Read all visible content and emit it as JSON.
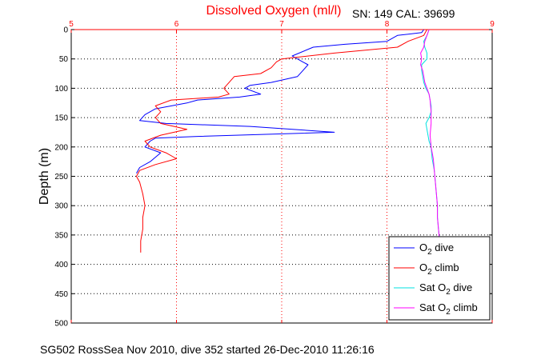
{
  "colors": {
    "o2_dive": "#0000ff",
    "o2_climb": "#ff0000",
    "sat_dive": "#00e0e0",
    "sat_climb": "#ff00ff",
    "x_axis": "#ff0000",
    "grid": "#ff0000"
  },
  "chart_data": {
    "type": "line",
    "title": "Dissolved Oxygen (ml/l)",
    "calibration_text": "SN: 149  CAL: 39699",
    "ylabel": "Depth (m)",
    "footer": "SG502 RossSea Nov 2010, dive 352 started 26-Dec-2010 11:26:16",
    "xlim": [
      5,
      9
    ],
    "ylim": [
      0,
      500
    ],
    "y_reversed": true,
    "x_axis_position": "top",
    "x_ticks": [
      "5",
      "6",
      "7",
      "8",
      "9"
    ],
    "y_ticks": [
      "0",
      "50",
      "100",
      "150",
      "200",
      "250",
      "300",
      "350",
      "400",
      "450",
      "500"
    ],
    "grid": true,
    "legend_placement": "bottom-right",
    "series": [
      {
        "key": "o2_dive",
        "legend_main": "O",
        "legend_sub": "2",
        "legend_rest": " dive",
        "points": [
          [
            8.35,
            0
          ],
          [
            8.33,
            5
          ],
          [
            8.1,
            10
          ],
          [
            8.0,
            20
          ],
          [
            7.6,
            25
          ],
          [
            7.3,
            30
          ],
          [
            7.1,
            45
          ],
          [
            7.2,
            55
          ],
          [
            7.25,
            60
          ],
          [
            7.2,
            70
          ],
          [
            7.15,
            80
          ],
          [
            6.9,
            90
          ],
          [
            6.7,
            95
          ],
          [
            6.65,
            100
          ],
          [
            6.8,
            110
          ],
          [
            6.6,
            115
          ],
          [
            6.2,
            120
          ],
          [
            6.1,
            125
          ],
          [
            5.8,
            135
          ],
          [
            5.7,
            145
          ],
          [
            5.65,
            155
          ],
          [
            5.9,
            160
          ],
          [
            6.7,
            165
          ],
          [
            7.5,
            175
          ],
          [
            6.2,
            182
          ],
          [
            5.8,
            185
          ],
          [
            5.75,
            190
          ],
          [
            5.7,
            200
          ],
          [
            5.85,
            210
          ],
          [
            5.75,
            225
          ],
          [
            5.65,
            235
          ],
          [
            5.62,
            245
          ]
        ]
      },
      {
        "key": "o2_climb",
        "legend_main": "O",
        "legend_sub": "2",
        "legend_rest": " climb",
        "points": [
          [
            8.38,
            0
          ],
          [
            8.35,
            10
          ],
          [
            8.2,
            20
          ],
          [
            8.1,
            30
          ],
          [
            7.5,
            40
          ],
          [
            7.0,
            50
          ],
          [
            6.95,
            55
          ],
          [
            6.9,
            65
          ],
          [
            6.8,
            75
          ],
          [
            6.55,
            80
          ],
          [
            6.5,
            90
          ],
          [
            6.45,
            100
          ],
          [
            6.5,
            110
          ],
          [
            6.4,
            115
          ],
          [
            5.95,
            120
          ],
          [
            5.8,
            130
          ],
          [
            5.85,
            140
          ],
          [
            5.8,
            150
          ],
          [
            5.85,
            160
          ],
          [
            6.1,
            170
          ],
          [
            5.85,
            180
          ],
          [
            5.7,
            190
          ],
          [
            5.75,
            200
          ],
          [
            5.9,
            210
          ],
          [
            6.0,
            220
          ],
          [
            5.8,
            230
          ],
          [
            5.65,
            240
          ],
          [
            5.62,
            250
          ],
          [
            5.65,
            260
          ],
          [
            5.68,
            280
          ],
          [
            5.7,
            300
          ],
          [
            5.68,
            320
          ],
          [
            5.68,
            340
          ],
          [
            5.66,
            360
          ],
          [
            5.66,
            380
          ]
        ]
      },
      {
        "key": "sat_dive",
        "legend_main": "Sat O",
        "legend_sub": "2",
        "legend_rest": " dive",
        "points": [
          [
            8.4,
            0
          ],
          [
            8.38,
            10
          ],
          [
            8.35,
            20
          ],
          [
            8.36,
            30
          ],
          [
            8.38,
            40
          ],
          [
            8.38,
            50
          ],
          [
            8.33,
            60
          ],
          [
            8.33,
            70
          ],
          [
            8.34,
            80
          ],
          [
            8.35,
            90
          ],
          [
            8.37,
            100
          ],
          [
            8.4,
            110
          ],
          [
            8.41,
            120
          ],
          [
            8.42,
            130
          ],
          [
            8.42,
            140
          ],
          [
            8.4,
            150
          ],
          [
            8.37,
            160
          ],
          [
            8.38,
            170
          ],
          [
            8.39,
            180
          ],
          [
            8.4,
            190
          ],
          [
            8.42,
            200
          ],
          [
            8.43,
            220
          ],
          [
            8.45,
            240
          ],
          [
            8.46,
            260
          ],
          [
            8.47,
            280
          ],
          [
            8.48,
            300
          ],
          [
            8.48,
            320
          ],
          [
            8.49,
            340
          ],
          [
            8.5,
            360
          ],
          [
            8.5,
            380
          ]
        ]
      },
      {
        "key": "sat_climb",
        "legend_main": "Sat O",
        "legend_sub": "2",
        "legend_rest": " climb",
        "points": [
          [
            8.4,
            0
          ],
          [
            8.38,
            10
          ],
          [
            8.36,
            20
          ],
          [
            8.35,
            30
          ],
          [
            8.32,
            40
          ],
          [
            8.33,
            50
          ],
          [
            8.32,
            60
          ],
          [
            8.34,
            70
          ],
          [
            8.35,
            80
          ],
          [
            8.36,
            90
          ],
          [
            8.38,
            100
          ],
          [
            8.4,
            110
          ],
          [
            8.41,
            120
          ],
          [
            8.42,
            140
          ],
          [
            8.42,
            160
          ],
          [
            8.41,
            180
          ],
          [
            8.42,
            200
          ],
          [
            8.44,
            220
          ],
          [
            8.45,
            240
          ],
          [
            8.46,
            260
          ],
          [
            8.47,
            280
          ],
          [
            8.48,
            300
          ],
          [
            8.48,
            320
          ],
          [
            8.49,
            340
          ],
          [
            8.5,
            360
          ],
          [
            8.5,
            380
          ]
        ]
      }
    ]
  }
}
